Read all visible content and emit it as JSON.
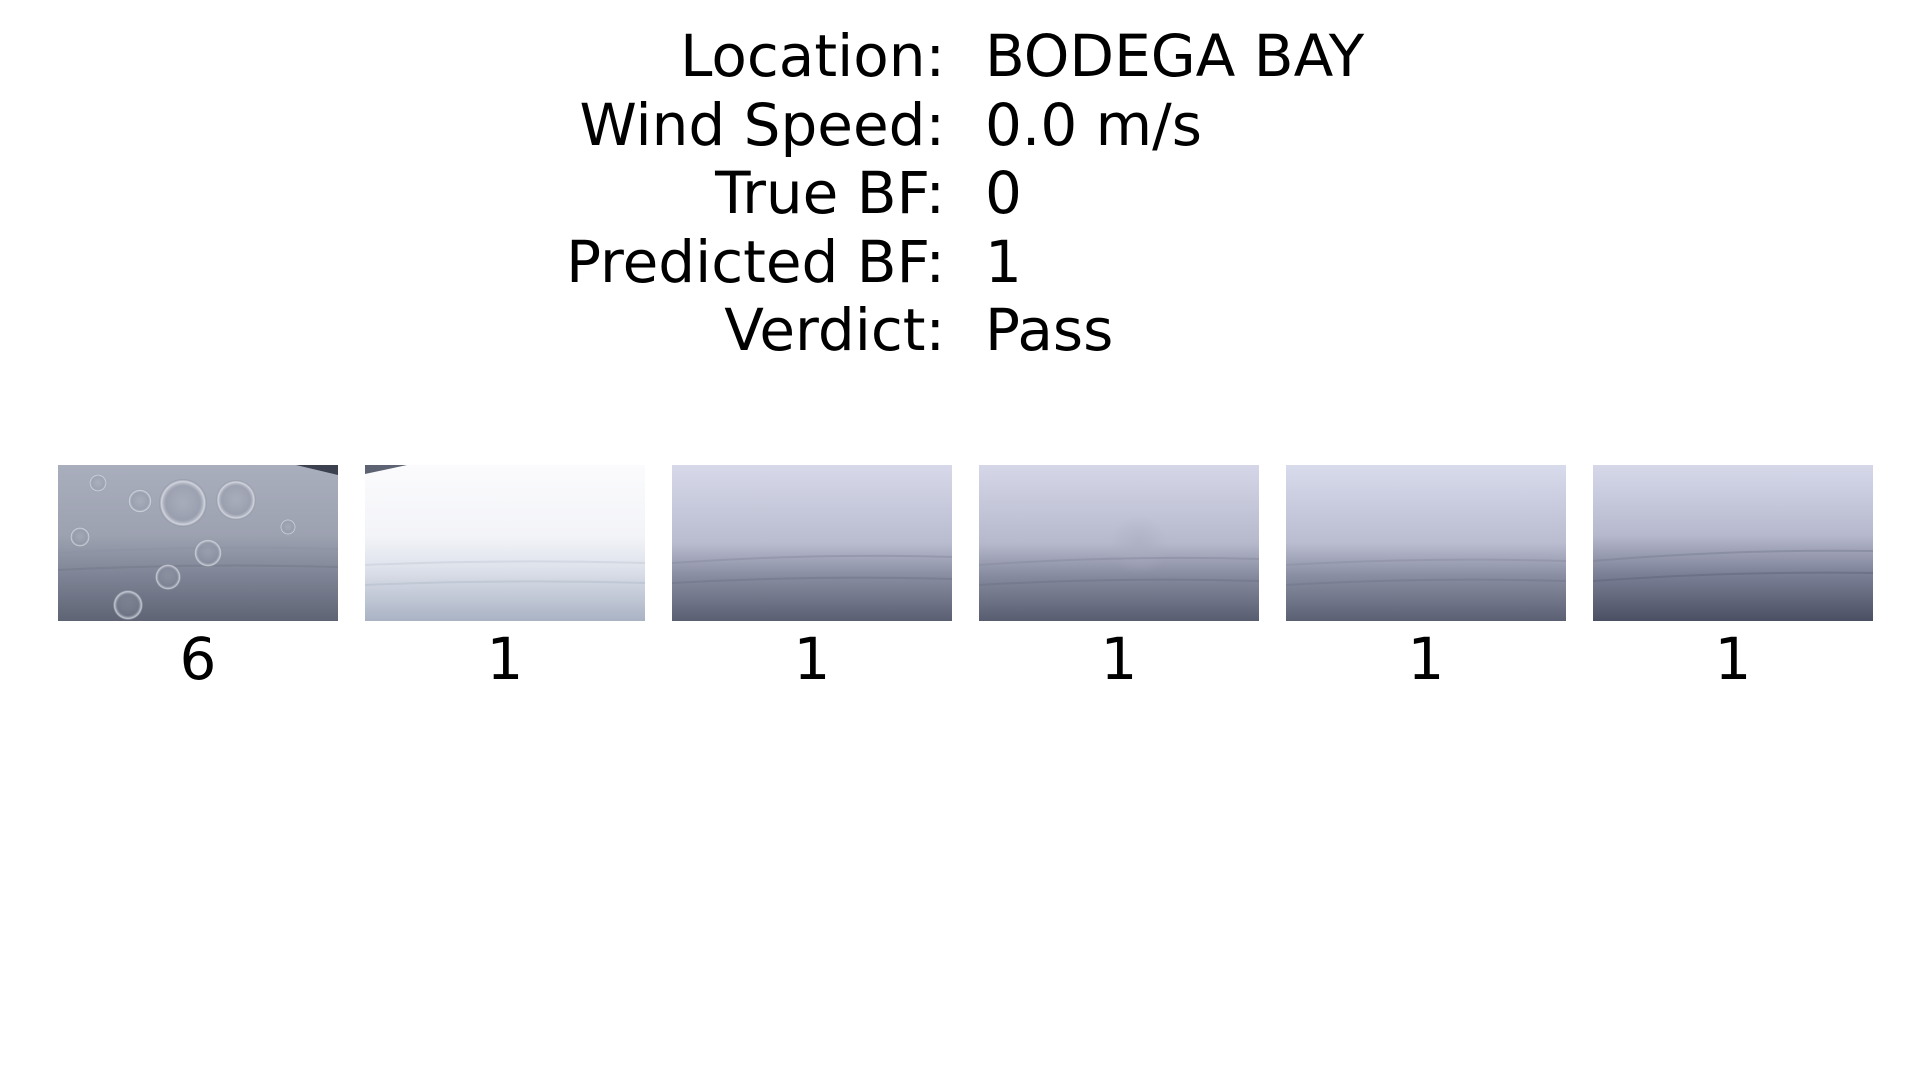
{
  "info": {
    "rows": [
      {
        "label": "Location:",
        "value": "BODEGA BAY"
      },
      {
        "label": "Wind Speed:",
        "value": "0.0 m/s"
      },
      {
        "label": "True BF:",
        "value": "0"
      },
      {
        "label": "Predicted BF:",
        "value": "1"
      },
      {
        "label": "Verdict:",
        "value": "Pass"
      }
    ]
  },
  "frames": [
    {
      "label": "6",
      "scene": "foggy-sea-water-droplets"
    },
    {
      "label": "1",
      "scene": "overexposed-sea"
    },
    {
      "label": "1",
      "scene": "foggy-sea"
    },
    {
      "label": "1",
      "scene": "foggy-sea"
    },
    {
      "label": "1",
      "scene": "foggy-sea"
    },
    {
      "label": "1",
      "scene": "foggy-sea"
    }
  ]
}
